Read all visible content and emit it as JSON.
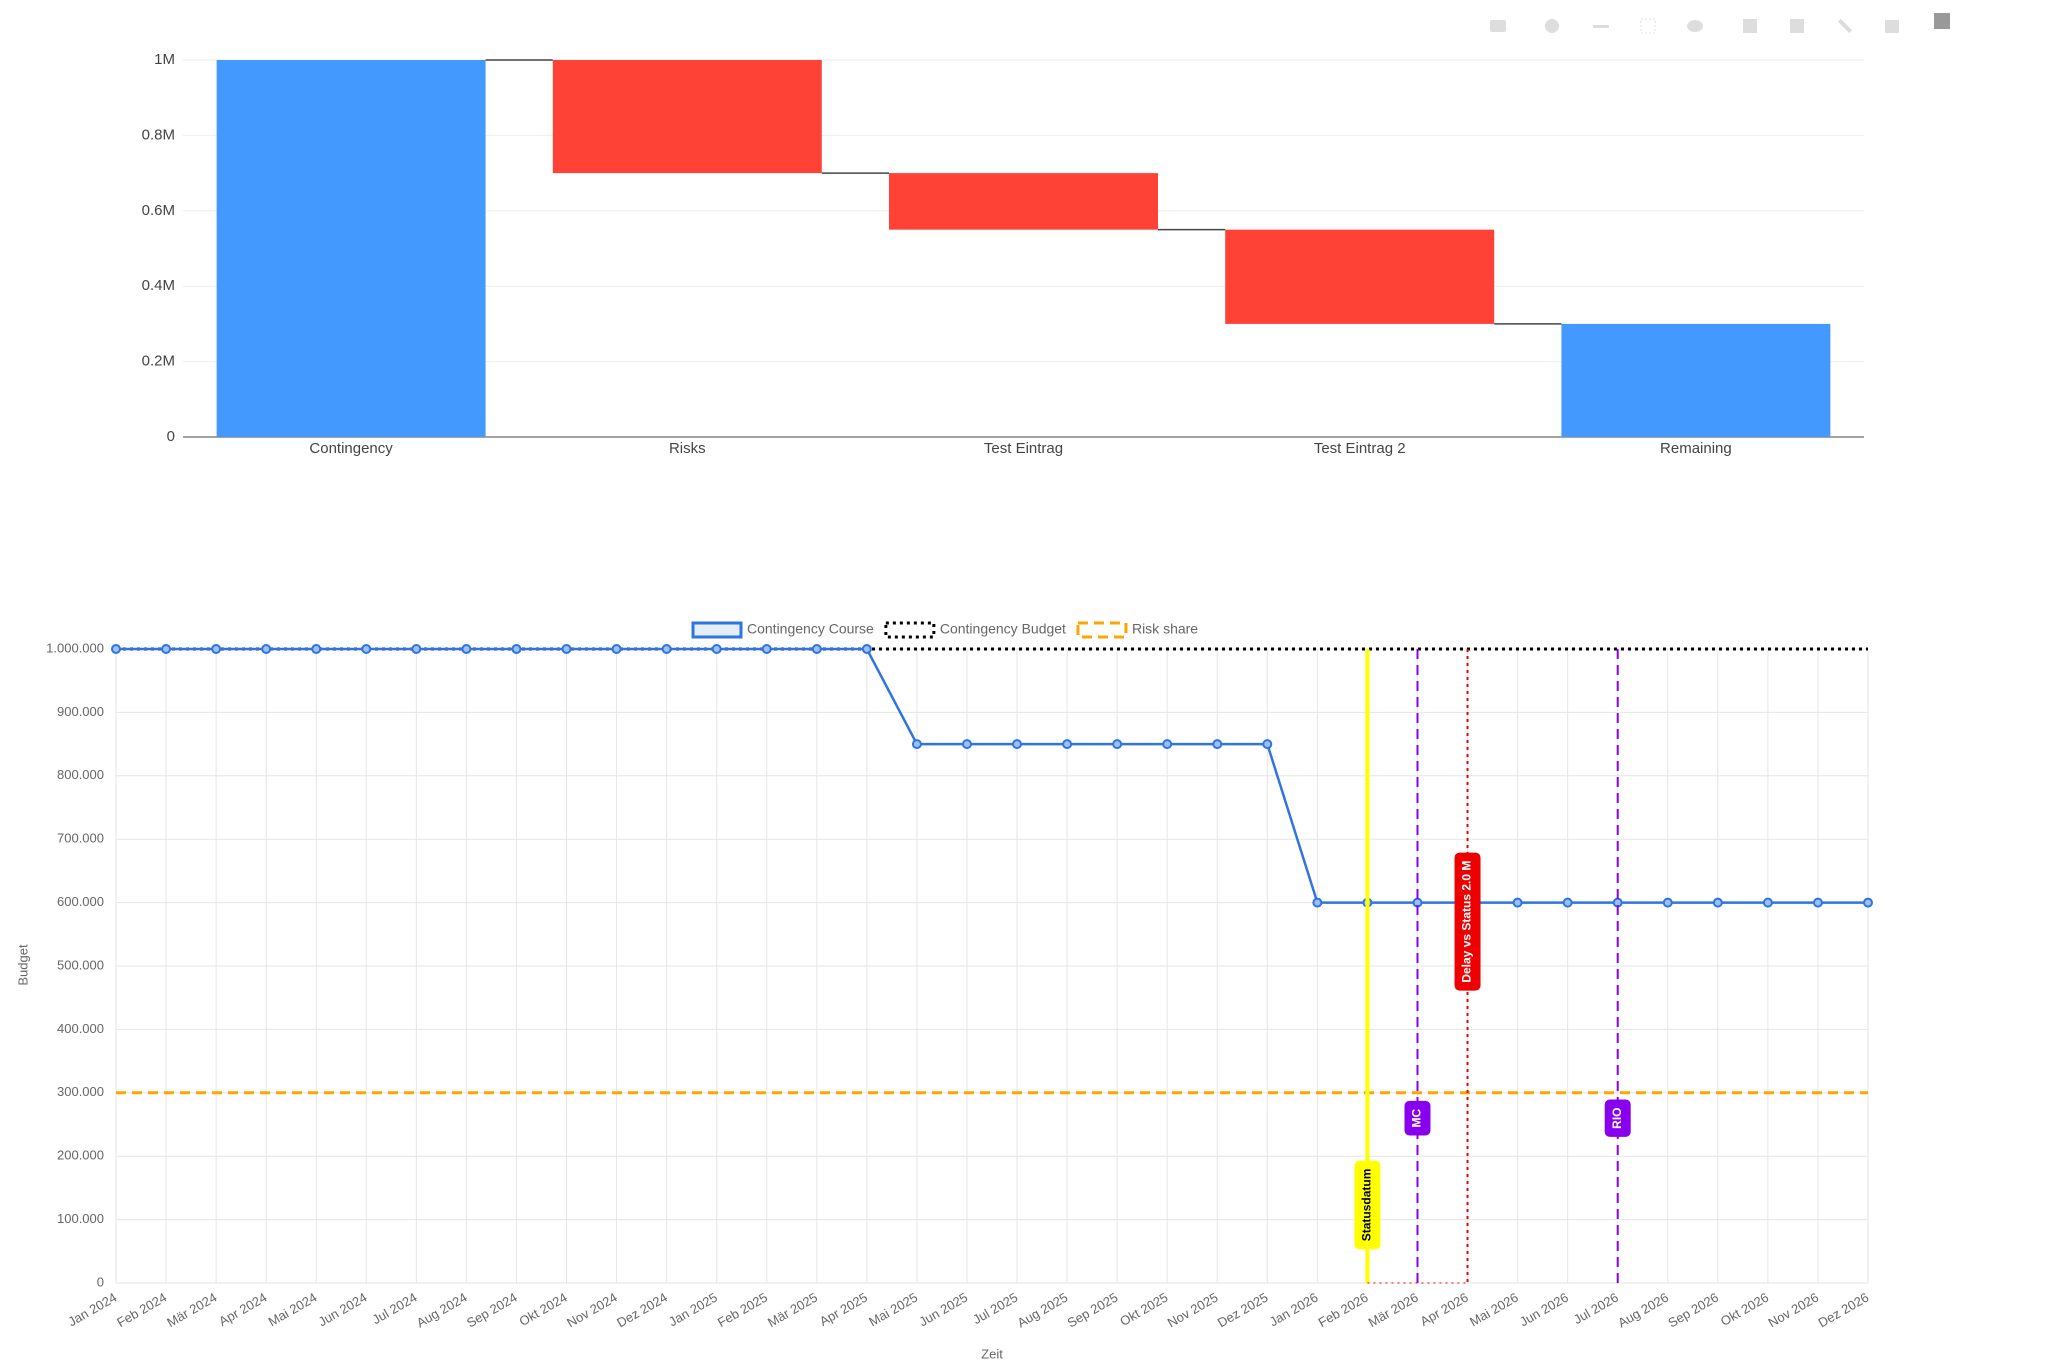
{
  "chart_data": [
    {
      "type": "waterfall",
      "categories": [
        "Contingency",
        "Risks",
        "Test Eintrag",
        "Test Eintrag 2",
        "Remaining"
      ],
      "values": [
        1000000,
        -300000,
        -150000,
        -250000,
        300000
      ],
      "measures": [
        "absolute",
        "relative",
        "relative",
        "relative",
        "total"
      ],
      "colors": {
        "increasing": "#4499ff",
        "decreasing": "#ff4136",
        "total": "#4499ff"
      },
      "ylim": [
        0,
        1000000
      ],
      "yticks": [
        {
          "value": 0,
          "label": "0"
        },
        {
          "value": 200000,
          "label": "0.2M"
        },
        {
          "value": 400000,
          "label": "0.4M"
        },
        {
          "value": 600000,
          "label": "0.6M"
        },
        {
          "value": 800000,
          "label": "0.8M"
        },
        {
          "value": 1000000,
          "label": "1M"
        }
      ],
      "grid": true
    },
    {
      "type": "line",
      "x_label": "Zeit",
      "y_label": "Budget",
      "categories": [
        "Jan 2024",
        "Feb 2024",
        "Mär 2024",
        "Apr 2024",
        "Mai 2024",
        "Jun 2024",
        "Jul 2024",
        "Aug 2024",
        "Sep 2024",
        "Okt 2024",
        "Nov 2024",
        "Dez 2024",
        "Jan 2025",
        "Feb 2025",
        "Mär 2025",
        "Apr 2025",
        "Mai 2025",
        "Jun 2025",
        "Jul 2025",
        "Aug 2025",
        "Sep 2025",
        "Okt 2025",
        "Nov 2025",
        "Dez 2025",
        "Jan 2026",
        "Feb 2026",
        "Mär 2026",
        "Apr 2026",
        "Mai 2026",
        "Jun 2026",
        "Jul 2026",
        "Aug 2026",
        "Sep 2026",
        "Okt 2026",
        "Nov 2026",
        "Dez 2026"
      ],
      "series": [
        {
          "name": "Contingency Course",
          "color": "#2f74e0",
          "style": "solid",
          "markers": true,
          "values": [
            1000000,
            1000000,
            1000000,
            1000000,
            1000000,
            1000000,
            1000000,
            1000000,
            1000000,
            1000000,
            1000000,
            1000000,
            1000000,
            1000000,
            1000000,
            1000000,
            850000,
            850000,
            850000,
            850000,
            850000,
            850000,
            850000,
            850000,
            600000,
            600000,
            600000,
            600000,
            600000,
            600000,
            600000,
            600000,
            600000,
            600000,
            600000,
            600000
          ]
        },
        {
          "name": "Contingency Budget",
          "color": "#000000",
          "style": "dotted",
          "markers": false,
          "values": [
            1000000,
            1000000,
            1000000,
            1000000,
            1000000,
            1000000,
            1000000,
            1000000,
            1000000,
            1000000,
            1000000,
            1000000,
            1000000,
            1000000,
            1000000,
            1000000,
            1000000,
            1000000,
            1000000,
            1000000,
            1000000,
            1000000,
            1000000,
            1000000,
            1000000,
            1000000,
            1000000,
            1000000,
            1000000,
            1000000,
            1000000,
            1000000,
            1000000,
            1000000,
            1000000,
            1000000
          ]
        },
        {
          "name": "Risk share",
          "color": "#ffa500",
          "style": "dashed",
          "markers": false,
          "values": [
            300000,
            300000,
            300000,
            300000,
            300000,
            300000,
            300000,
            300000,
            300000,
            300000,
            300000,
            300000,
            300000,
            300000,
            300000,
            300000,
            300000,
            300000,
            300000,
            300000,
            300000,
            300000,
            300000,
            300000,
            300000,
            300000,
            300000,
            300000,
            300000,
            300000,
            300000,
            300000,
            300000,
            300000,
            300000,
            300000
          ]
        }
      ],
      "annotations": [
        {
          "label": "Statusdatum",
          "x": "Feb 2026",
          "color": "#ffff00",
          "text_color": "#000000",
          "style": "solid"
        },
        {
          "label": "MC",
          "x": "Mär 2026",
          "color": "#8800ee",
          "text_color": "#ffffff",
          "style": "dashed"
        },
        {
          "label": "Delay vs Status 2.0 M",
          "x": "Apr 2026",
          "color": "#ee0000",
          "text_color": "#ffffff",
          "style": "dotted"
        },
        {
          "label": "RIO",
          "x": "Jul 2026",
          "color": "#8800ee",
          "text_color": "#ffffff",
          "style": "dashed"
        }
      ],
      "ylim": [
        0,
        1000000
      ],
      "yticks": [
        {
          "value": 0,
          "label": "0"
        },
        {
          "value": 100000,
          "label": "100.000"
        },
        {
          "value": 200000,
          "label": "200.000"
        },
        {
          "value": 300000,
          "label": "300.000"
        },
        {
          "value": 400000,
          "label": "400.000"
        },
        {
          "value": 500000,
          "label": "500.000"
        },
        {
          "value": 600000,
          "label": "600.000"
        },
        {
          "value": 700000,
          "label": "700.000"
        },
        {
          "value": 800000,
          "label": "800.000"
        },
        {
          "value": 900000,
          "label": "900.000"
        },
        {
          "value": 1000000,
          "label": "1.000.000"
        }
      ],
      "grid": true,
      "legend": "top"
    }
  ]
}
